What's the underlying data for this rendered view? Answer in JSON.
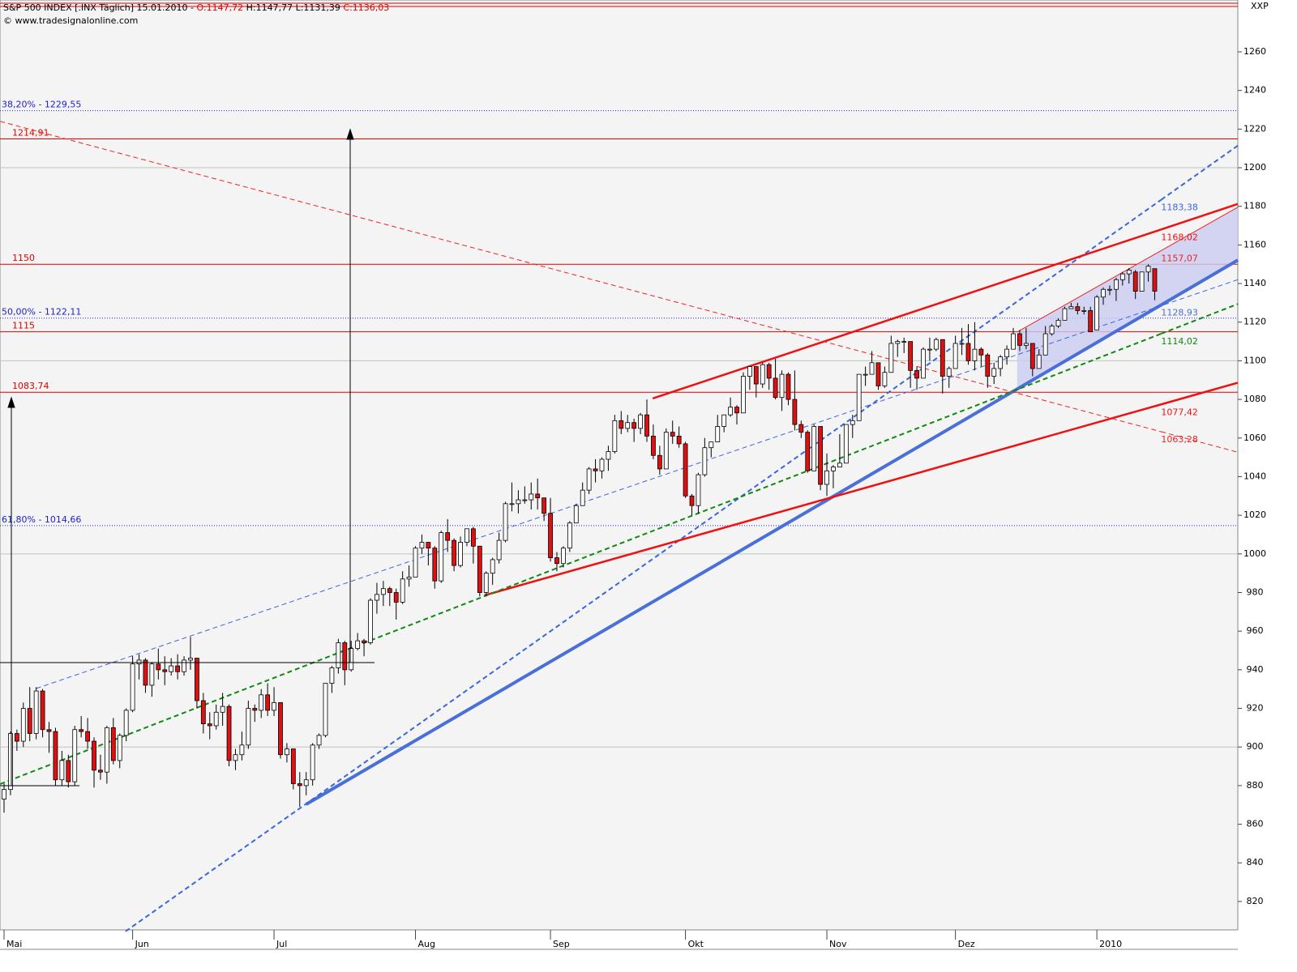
{
  "chart_data": {
    "type": "candlestick",
    "header": {
      "title": "S&P 500 INDEX [.INX  Täglich] 15.01.2010 -",
      "open": "O:1147,72",
      "high_low": "H:1147,77 L:1131,39",
      "close": "C:1136,03"
    },
    "source": "© www.tradesignalonline.com",
    "axis_label": "XXP",
    "categories": [
      "Mai",
      null,
      null,
      null,
      null,
      null,
      null,
      null,
      null,
      null,
      null,
      null,
      null,
      null,
      null,
      null,
      null,
      null,
      null,
      null,
      "Jun",
      null,
      null,
      null,
      null,
      null,
      null,
      null,
      null,
      null,
      null,
      null,
      null,
      null,
      null,
      null,
      null,
      null,
      null,
      null,
      null,
      null,
      "Jul",
      null,
      null,
      null,
      null,
      null,
      null,
      null,
      null,
      null,
      null,
      null,
      null,
      null,
      null,
      null,
      null,
      null,
      null,
      null,
      null,
      null,
      "Aug",
      null,
      null,
      null,
      null,
      null,
      null,
      null,
      null,
      null,
      null,
      null,
      null,
      null,
      null,
      null,
      null,
      null,
      null,
      null,
      null,
      "Sep",
      null,
      null,
      null,
      null,
      null,
      null,
      null,
      null,
      null,
      null,
      null,
      null,
      null,
      null,
      null,
      null,
      null,
      null,
      null,
      null,
      "Okt",
      null,
      null,
      null,
      null,
      null,
      null,
      null,
      null,
      null,
      null,
      null,
      null,
      null,
      null,
      null,
      null,
      null,
      null,
      null,
      null,
      null,
      "Nov",
      null,
      null,
      null,
      null,
      null,
      null,
      null,
      null,
      null,
      null,
      null,
      null,
      null,
      null,
      null,
      null,
      null,
      null,
      null,
      "Dez",
      null,
      null,
      null,
      null,
      null,
      null,
      null,
      null,
      null,
      null,
      null,
      null,
      null,
      null,
      null,
      null,
      null,
      null,
      null,
      null,
      null,
      "2010",
      null,
      null,
      null,
      null,
      null,
      null,
      null,
      null,
      null
    ],
    "ohlc": [
      [
        873,
        881,
        866,
        878
      ],
      [
        878,
        908,
        875,
        907
      ],
      [
        907,
        909,
        898,
        903
      ],
      [
        903,
        923,
        900,
        920
      ],
      [
        920,
        931,
        903,
        907
      ],
      [
        907,
        931,
        904,
        929
      ],
      [
        929,
        930,
        905,
        909
      ],
      [
        909,
        913,
        897,
        908
      ],
      [
        908,
        910,
        880,
        883
      ],
      [
        883,
        898,
        880,
        893
      ],
      [
        893,
        896,
        879,
        882
      ],
      [
        882,
        911,
        880,
        909
      ],
      [
        909,
        916,
        905,
        908
      ],
      [
        908,
        915,
        899,
        903
      ],
      [
        903,
        905,
        879,
        888
      ],
      [
        888,
        896,
        883,
        887
      ],
      [
        887,
        911,
        881,
        910
      ],
      [
        910,
        915,
        891,
        893
      ],
      [
        893,
        907,
        889,
        906
      ],
      [
        906,
        920,
        903,
        919
      ],
      [
        919,
        947,
        918,
        943
      ],
      [
        943,
        948,
        935,
        945
      ],
      [
        945,
        946,
        928,
        932
      ],
      [
        932,
        944,
        926,
        943
      ],
      [
        943,
        951,
        935,
        940
      ],
      [
        940,
        947,
        932,
        939
      ],
      [
        939,
        946,
        937,
        942
      ],
      [
        942,
        948,
        935,
        939
      ],
      [
        939,
        947,
        937,
        945
      ],
      [
        945,
        957,
        940,
        946
      ],
      [
        946,
        946,
        920,
        924
      ],
      [
        924,
        928,
        907,
        912
      ],
      [
        912,
        918,
        904,
        911
      ],
      [
        911,
        922,
        909,
        918
      ],
      [
        918,
        928,
        911,
        921
      ],
      [
        921,
        922,
        890,
        893
      ],
      [
        893,
        899,
        888,
        896
      ],
      [
        896,
        908,
        893,
        901
      ],
      [
        901,
        924,
        899,
        920
      ],
      [
        920,
        922,
        913,
        919
      ],
      [
        919,
        930,
        915,
        927
      ],
      [
        927,
        933,
        916,
        919
      ],
      [
        919,
        931,
        916,
        923
      ],
      [
        923,
        923,
        894,
        896
      ],
      [
        896,
        902,
        892,
        899
      ],
      [
        899,
        899,
        878,
        881
      ],
      [
        881,
        887,
        869,
        880
      ],
      [
        880,
        887,
        875,
        883
      ],
      [
        883,
        902,
        880,
        901
      ],
      [
        901,
        907,
        899,
        906
      ],
      [
        906,
        933,
        905,
        933
      ],
      [
        933,
        942,
        928,
        941
      ],
      [
        941,
        956,
        938,
        954
      ],
      [
        954,
        955,
        932,
        940
      ],
      [
        940,
        955,
        939,
        951
      ],
      [
        951,
        959,
        950,
        955
      ],
      [
        955,
        956,
        947,
        954
      ],
      [
        954,
        977,
        953,
        976
      ],
      [
        976,
        985,
        969,
        979
      ],
      [
        979,
        986,
        973,
        982
      ],
      [
        982,
        983,
        973,
        980
      ],
      [
        980,
        982,
        966,
        975
      ],
      [
        975,
        991,
        974,
        987
      ],
      [
        987,
        994,
        983,
        988
      ],
      [
        988,
        1004,
        988,
        1003
      ],
      [
        1003,
        1010,
        1000,
        1006
      ],
      [
        1006,
        1006,
        994,
        1003
      ],
      [
        1003,
        1004,
        982,
        986
      ],
      [
        986,
        1012,
        985,
        1011
      ],
      [
        1011,
        1018,
        1001,
        1007
      ],
      [
        1007,
        1008,
        991,
        994
      ],
      [
        994,
        1009,
        993,
        1006
      ],
      [
        1006,
        1013,
        1004,
        1013
      ],
      [
        1013,
        1014,
        995,
        1004
      ],
      [
        1004,
        1004,
        978,
        980
      ],
      [
        980,
        991,
        978,
        990
      ],
      [
        990,
        998,
        984,
        997
      ],
      [
        997,
        1011,
        995,
        1007
      ],
      [
        1007,
        1027,
        1006,
        1026
      ],
      [
        1026,
        1037,
        1022,
        1026
      ],
      [
        1026,
        1033,
        1021,
        1028
      ],
      [
        1028,
        1035,
        1026,
        1028
      ],
      [
        1028,
        1037,
        1023,
        1031
      ],
      [
        1031,
        1039,
        1023,
        1029
      ],
      [
        1029,
        1029,
        1017,
        1021
      ],
      [
        1021,
        1029,
        996,
        998
      ],
      [
        998,
        1001,
        991,
        995
      ],
      [
        995,
        1004,
        993,
        1003
      ],
      [
        1003,
        1017,
        1001,
        1016
      ],
      [
        1016,
        1026,
        1016,
        1025
      ],
      [
        1025,
        1037,
        1025,
        1033
      ],
      [
        1033,
        1045,
        1031,
        1044
      ],
      [
        1044,
        1049,
        1037,
        1043
      ],
      [
        1043,
        1050,
        1039,
        1049
      ],
      [
        1049,
        1056,
        1043,
        1053
      ],
      [
        1053,
        1072,
        1052,
        1069
      ],
      [
        1069,
        1074,
        1062,
        1065
      ],
      [
        1065,
        1072,
        1063,
        1068
      ],
      [
        1068,
        1070,
        1058,
        1065
      ],
      [
        1065,
        1073,
        1062,
        1072
      ],
      [
        1072,
        1080,
        1058,
        1061
      ],
      [
        1061,
        1067,
        1049,
        1051
      ],
      [
        1051,
        1056,
        1041,
        1044
      ],
      [
        1044,
        1065,
        1044,
        1063
      ],
      [
        1063,
        1069,
        1057,
        1061
      ],
      [
        1061,
        1066,
        1055,
        1057
      ],
      [
        1057,
        1058,
        1029,
        1030
      ],
      [
        1030,
        1031,
        1020,
        1025
      ],
      [
        1025,
        1042,
        1021,
        1041
      ],
      [
        1041,
        1060,
        1040,
        1055
      ],
      [
        1055,
        1058,
        1050,
        1058
      ],
      [
        1058,
        1072,
        1058,
        1066
      ],
      [
        1066,
        1072,
        1063,
        1072
      ],
      [
        1072,
        1081,
        1071,
        1076
      ],
      [
        1076,
        1077,
        1067,
        1073
      ],
      [
        1073,
        1094,
        1073,
        1092
      ],
      [
        1092,
        1097,
        1085,
        1097
      ],
      [
        1097,
        1097,
        1081,
        1088
      ],
      [
        1088,
        1099,
        1086,
        1098
      ],
      [
        1098,
        1099,
        1085,
        1091
      ],
      [
        1091,
        1101,
        1080,
        1081
      ],
      [
        1081,
        1095,
        1074,
        1093
      ],
      [
        1093,
        1094,
        1077,
        1080
      ],
      [
        1080,
        1095,
        1064,
        1067
      ],
      [
        1067,
        1069,
        1060,
        1063
      ],
      [
        1063,
        1064,
        1042,
        1043
      ],
      [
        1043,
        1067,
        1043,
        1066
      ],
      [
        1066,
        1066,
        1033,
        1036
      ],
      [
        1036,
        1052,
        1030,
        1043
      ],
      [
        1043,
        1046,
        1034,
        1045
      ],
      [
        1045,
        1062,
        1045,
        1047
      ],
      [
        1047,
        1067,
        1047,
        1067
      ],
      [
        1067,
        1072,
        1060,
        1069
      ],
      [
        1069,
        1093,
        1069,
        1093
      ],
      [
        1093,
        1097,
        1087,
        1093
      ],
      [
        1093,
        1105,
        1093,
        1099
      ],
      [
        1099,
        1099,
        1085,
        1087
      ],
      [
        1087,
        1097,
        1086,
        1094
      ],
      [
        1094,
        1113,
        1094,
        1109
      ],
      [
        1109,
        1111,
        1102,
        1110
      ],
      [
        1110,
        1112,
        1104,
        1110
      ],
      [
        1110,
        1110,
        1086,
        1095
      ],
      [
        1095,
        1097,
        1085,
        1091
      ],
      [
        1091,
        1107,
        1091,
        1106
      ],
      [
        1106,
        1112,
        1100,
        1106
      ],
      [
        1106,
        1112,
        1105,
        1111
      ],
      [
        1111,
        1111,
        1083,
        1092
      ],
      [
        1092,
        1097,
        1086,
        1096
      ],
      [
        1096,
        1113,
        1096,
        1109
      ],
      [
        1109,
        1117,
        1103,
        1109
      ],
      [
        1109,
        1119,
        1098,
        1100
      ],
      [
        1100,
        1120,
        1095,
        1106
      ],
      [
        1106,
        1107,
        1097,
        1103
      ],
      [
        1103,
        1104,
        1086,
        1092
      ],
      [
        1092,
        1099,
        1088,
        1096
      ],
      [
        1096,
        1103,
        1092,
        1102
      ],
      [
        1102,
        1108,
        1098,
        1106
      ],
      [
        1106,
        1117,
        1106,
        1114
      ],
      [
        1114,
        1116,
        1105,
        1108
      ],
      [
        1108,
        1117,
        1106,
        1109
      ],
      [
        1109,
        1109,
        1092,
        1096
      ],
      [
        1096,
        1106,
        1096,
        1103
      ],
      [
        1103,
        1118,
        1103,
        1114
      ],
      [
        1114,
        1119,
        1113,
        1118
      ],
      [
        1118,
        1122,
        1117,
        1121
      ],
      [
        1121,
        1128,
        1121,
        1127
      ],
      [
        1127,
        1130,
        1127,
        1128
      ],
      [
        1128,
        1130,
        1124,
        1126
      ],
      [
        1126,
        1128,
        1124,
        1126
      ],
      [
        1126,
        1128,
        1115,
        1115
      ],
      [
        1116,
        1134,
        1116,
        1133
      ],
      [
        1133,
        1138,
        1129,
        1137
      ],
      [
        1137,
        1139,
        1134,
        1137
      ],
      [
        1137,
        1143,
        1131,
        1142
      ],
      [
        1142,
        1146,
        1139,
        1145
      ],
      [
        1145,
        1148,
        1140,
        1147
      ],
      [
        1146,
        1147,
        1132,
        1136
      ],
      [
        1136,
        1146,
        1136,
        1146
      ],
      [
        1146,
        1150,
        1141,
        1149
      ],
      [
        1147.72,
        1147.77,
        1131.39,
        1136.03
      ]
    ],
    "up_color": "#ffffff",
    "down_color": "#dd1111",
    "ylim": [
      805.7,
      1286.85
    ],
    "yticks": [
      820,
      840,
      860,
      880,
      900,
      920,
      940,
      960,
      980,
      1000,
      1020,
      1040,
      1060,
      1080,
      1100,
      1120,
      1140,
      1160,
      1180,
      1200,
      1220,
      1240,
      1260
    ],
    "grid_y": [
      900,
      1000,
      1100,
      1200
    ],
    "levels": [
      {
        "value": 1214.91,
        "label": "1214,91",
        "color": "#e00000",
        "dotted": false
      },
      {
        "value": 1150,
        "label": "1150",
        "color": "#e00000",
        "dotted": false
      },
      {
        "value": 1115,
        "label": "1115",
        "color": "#e00000",
        "dotted": false
      },
      {
        "value": 1083.74,
        "label": "1083,74",
        "color": "#e00000",
        "dotted": false
      },
      {
        "value": 1229.55,
        "label": "38,20% - 1229,55",
        "color": "#2020d0",
        "dotted": true
      },
      {
        "value": 1122.11,
        "label": "50,00% - 1122,11",
        "color": "#2020d0",
        "dotted": true
      },
      {
        "value": 1014.66,
        "label": "61,80% - 1014,66",
        "color": "#2020d0",
        "dotted": true
      }
    ],
    "trendlines": [
      {
        "x": [
          47,
          180
        ],
        "y": [
          870.3,
          1128.93
        ],
        "label": "1128,93",
        "color": "#4a6fd8",
        "width": 4,
        "dash": false
      },
      {
        "x": [
          18.9,
          180
        ],
        "y": [
          804.5,
          1183.38
        ],
        "label": "1183,38",
        "color": "#3a66dd",
        "width": 2,
        "dash": true
      },
      {
        "x": [
          100.9,
          180
        ],
        "y": [
          1080.5,
          1168.02
        ],
        "label": "1168,02",
        "color": "#ee1111",
        "width": 2.5,
        "dash": false
      },
      {
        "x": [
          74.7,
          180
        ],
        "y": [
          978.5,
          1077.42
        ],
        "label": "1077,42",
        "color": "#ee1111",
        "width": 2.5,
        "dash": false
      },
      {
        "x": [
          -0.6,
          180
        ],
        "y": [
          1224,
          1063.28
        ],
        "label": "1063,28",
        "color": "#ee2222",
        "width": 1,
        "dash": true
      },
      {
        "x": [
          -0.6,
          180
        ],
        "y": [
          880.8,
          1114.02
        ],
        "label": "1114,02",
        "color": "#118811",
        "width": 2,
        "dash": true
      },
      {
        "x": [
          5,
          192
        ],
        "y": [
          930.3,
          1142.1
        ],
        "color": "#3a66dd",
        "width": 1,
        "dash": true
      },
      {
        "x": [
          157.6,
          180
        ],
        "y": [
          1114.9,
          1157.07
        ],
        "label": "1157,07",
        "color": "#ee2222",
        "width": 1,
        "dash": false,
        "fill": "#c9ccf0"
      }
    ]
  }
}
